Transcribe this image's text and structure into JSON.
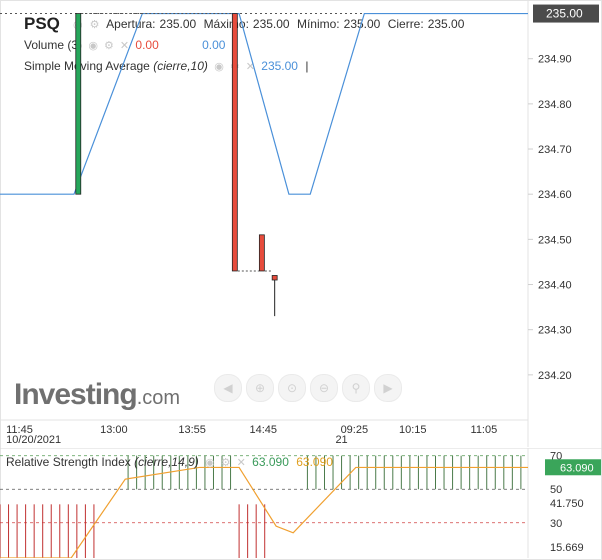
{
  "header": {
    "symbol": "PSQ",
    "open_label": "Apertura:",
    "open_value": "235.00",
    "high_label": "Máximo:",
    "high_value": "235.00",
    "low_label": "Mínimo:",
    "low_value": "235.00",
    "close_label": "Cierre:",
    "close_value": "235.00",
    "volume_label": "Volume (3)",
    "volume_down": "0.00",
    "volume_up": "0.00",
    "sma_label": "Simple Moving Average",
    "sma_params": "(cierre,10)",
    "sma_value": "235.00"
  },
  "rsi_panel": {
    "label": "Relative Strength Index",
    "params": "(cierre,14,9)",
    "value1": "63.090",
    "value2": "63.090",
    "current_tag": "63.090"
  },
  "watermark": {
    "brand": "Investing",
    "suffix": ".com"
  },
  "colors": {
    "up": "#26a65b",
    "down": "#e74c3c",
    "sma": "#4a90d9",
    "rsi": "#f0a030",
    "tag": "#4b4b4b"
  },
  "nav_icons": [
    "arrow-left-icon",
    "zoom-in-icon",
    "zoom-reset-icon",
    "zoom-out-icon",
    "search-icon",
    "arrow-right-icon"
  ],
  "chart_data": [
    {
      "type": "candlestick",
      "y_ticks": [
        "234.20",
        "234.30",
        "234.40",
        "234.50",
        "234.60",
        "234.70",
        "234.80",
        "234.90"
      ],
      "ylim": [
        234.1,
        235.03
      ],
      "current_price_tag": "235.00",
      "x_ticks": [
        {
          "label": "11:45",
          "sub": "10/20/2021",
          "min": 5
        },
        {
          "label": "13:00",
          "sub": "",
          "min": 80
        },
        {
          "label": "13:55",
          "sub": "",
          "min": 135
        },
        {
          "label": "14:45",
          "sub": "",
          "min": 185
        },
        {
          "label": "09:25",
          "sub": "21",
          "min": 240
        },
        {
          "label": "10:15",
          "sub": "",
          "min": 290
        },
        {
          "label": "11:05",
          "sub": "",
          "min": 340
        }
      ],
      "x_range_minutes": [
        0,
        371
      ],
      "candles": [
        {
          "min": 55,
          "open": 234.6,
          "high": 235.0,
          "low": 234.6,
          "close": 235.0
        },
        {
          "min": 165,
          "open": 235.0,
          "high": 235.0,
          "low": 234.43,
          "close": 234.43
        },
        {
          "min": 184,
          "open": 234.51,
          "high": 234.51,
          "low": 234.43,
          "close": 234.43
        },
        {
          "min": 193,
          "open": 234.42,
          "high": 234.42,
          "low": 234.33,
          "close": 234.41
        }
      ],
      "sma_series": {
        "name": "Simple Moving Average",
        "points": [
          [
            0,
            234.6
          ],
          [
            52,
            234.6
          ],
          [
            100,
            235.0
          ],
          [
            168,
            235.0
          ],
          [
            203,
            234.6
          ],
          [
            218,
            234.6
          ],
          [
            256,
            235.0
          ],
          [
            371,
            235.0
          ]
        ]
      }
    },
    {
      "type": "line",
      "title": "Relative Strength Index",
      "y_ticks": [
        "15.669",
        "30",
        "41.750",
        "50",
        "63.090",
        "70"
      ],
      "ylim": [
        9,
        71
      ],
      "reference_lines": [
        30,
        50,
        70
      ],
      "series": [
        {
          "name": "Relative Strength Index",
          "points": [
            [
              0,
              9
            ],
            [
              50,
              9
            ],
            [
              88,
              56
            ],
            [
              140,
              63
            ],
            [
              168,
              63
            ],
            [
              194,
              28
            ],
            [
              206,
              24
            ],
            [
              250,
              63
            ],
            [
              371,
              63
            ]
          ]
        }
      ]
    }
  ]
}
